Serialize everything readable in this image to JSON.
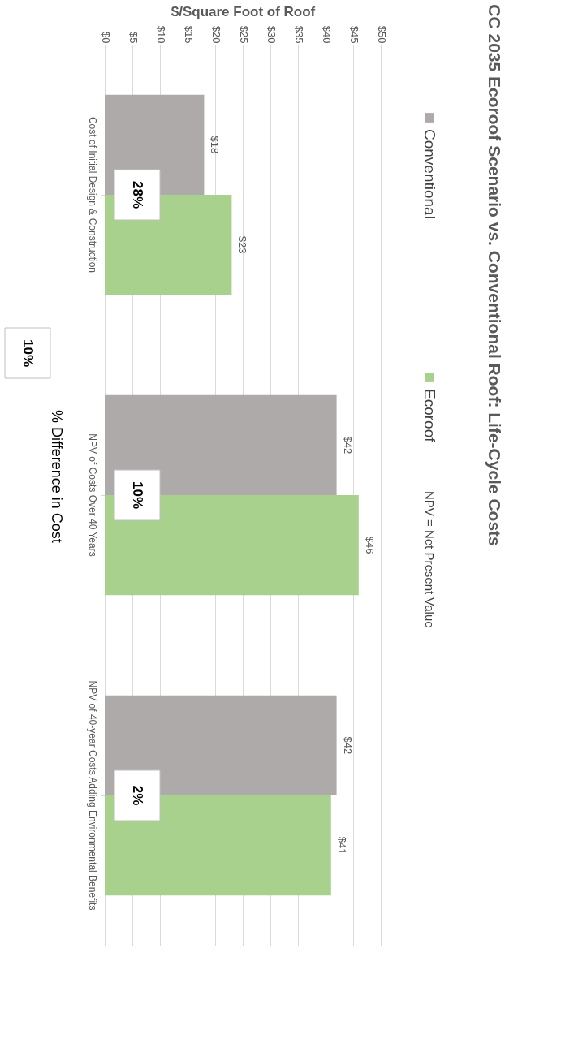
{
  "chart_data": {
    "type": "bar",
    "orientation": "horizontal",
    "title": "CC 2035 Ecoroof Scenario vs. Conventional Roof: Life-Cycle Costs",
    "xlabel": "$/Square Foot of Roof",
    "categories": [
      "Cost of Initial Design & Construction",
      "NPV of Costs Over 40 Years",
      "NPV of 40-year Costs Adding Environmental Benefits"
    ],
    "series": [
      {
        "name": "Conventional",
        "color": "#aeaaaa",
        "values": [
          18,
          42,
          42
        ],
        "value_labels": [
          "$18",
          "$42",
          "$42"
        ]
      },
      {
        "name": "Ecoroof",
        "color": "#a9d18e",
        "values": [
          23,
          46,
          41
        ],
        "value_labels": [
          "$23",
          "$46",
          "$41"
        ]
      }
    ],
    "xlim": [
      0,
      50
    ],
    "xticks": [
      {
        "value": 0,
        "label": "$0"
      },
      {
        "value": 5,
        "label": "$5"
      },
      {
        "value": 10,
        "label": "$10"
      },
      {
        "value": 15,
        "label": "$15"
      },
      {
        "value": 20,
        "label": "$20"
      },
      {
        "value": 25,
        "label": "$25"
      },
      {
        "value": 30,
        "label": "$30"
      },
      {
        "value": 35,
        "label": "$35"
      },
      {
        "value": 40,
        "label": "$40"
      },
      {
        "value": 45,
        "label": "$45"
      },
      {
        "value": 50,
        "label": "$50"
      }
    ],
    "grid": "x",
    "legend": "right",
    "annotations": [
      {
        "text": "28%",
        "y": "Cost of Initial Design & Construction"
      },
      {
        "text": "10%",
        "y": "NPV of Costs Over 40 Years"
      },
      {
        "text": "2%",
        "y": "NPV of 40-year Costs Adding Environmental Benefits"
      },
      "10%",
      "% Difference in Cost",
      "NPV = Net Present Value"
    ]
  }
}
